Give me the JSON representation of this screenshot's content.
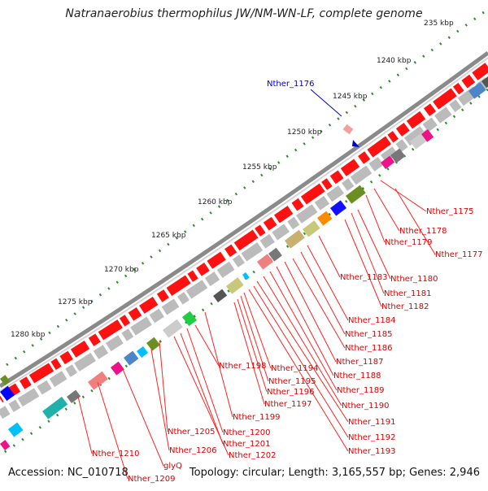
{
  "title": "Natranaerobius thermophilus JW/NM-WN-LF, complete genome",
  "footer": {
    "accession": "Accession: NC_010718",
    "summary": "Topology: circular; Length: 3,165,557 bp; Genes: 2,946"
  },
  "colors": {
    "backbone": "#8a8a8a",
    "feature": "#ff1111",
    "tick": "#2e8b2e",
    "label": "#dd0000",
    "highlight": "#0000cc"
  },
  "scale_labels": [
    "235 kbp",
    "1240 kbp",
    "1245 kbp",
    "1250 kbp",
    "1255 kbp",
    "1260 kbp",
    "1265 kbp",
    "1270 kbp",
    "1275 kbp",
    "1280 kbp"
  ],
  "highlight_gene": "Nther_1176",
  "gene_labels": [
    "Nther_1175",
    "Nther_1178",
    "Nther_1179",
    "Nther_1177",
    "Nther_1180",
    "Nther_1183",
    "Nther_1181",
    "Nther_1182",
    "Nther_1184",
    "Nther_1185",
    "Nther_1186",
    "Nther_1187",
    "Nther_1188",
    "Nther_1189",
    "Nther_1190",
    "Nther_1191",
    "Nther_1192",
    "Nther_1193",
    "Nther_1198",
    "Nther_1194",
    "Nther_1195",
    "Nther_1196",
    "Nther_1197",
    "Nther_1199",
    "Nther_1205",
    "Nther_1200",
    "Nther_1201",
    "Nther_1206",
    "Nther_1202",
    "Nther_1210",
    "glyQ",
    "Nther_1209"
  ]
}
